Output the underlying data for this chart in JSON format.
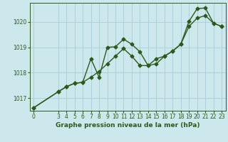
{
  "title": "Graphe pression niveau de la mer (hPa)",
  "background_color": "#cce8ed",
  "line_color": "#2d5a1b",
  "grid_color": "#a8cdd4",
  "ylim": [
    1016.5,
    1020.75
  ],
  "xlim": [
    -0.5,
    23.5
  ],
  "yticks": [
    1017,
    1018,
    1019,
    1020
  ],
  "xticks": [
    0,
    3,
    4,
    5,
    6,
    7,
    8,
    9,
    10,
    11,
    12,
    13,
    14,
    15,
    16,
    17,
    18,
    19,
    20,
    21,
    22,
    23
  ],
  "series1_x": [
    0,
    3,
    4,
    5,
    6,
    7,
    8,
    9,
    10,
    11,
    12,
    13,
    14,
    15,
    16,
    17,
    18,
    19,
    20,
    21,
    22,
    23
  ],
  "series1_y": [
    1016.62,
    1017.25,
    1017.45,
    1017.58,
    1017.62,
    1018.55,
    1017.82,
    1019.0,
    1019.02,
    1019.32,
    1019.12,
    1018.82,
    1018.28,
    1018.35,
    1018.65,
    1018.85,
    1019.12,
    1020.02,
    1020.52,
    1020.55,
    1019.95,
    1019.82
  ],
  "series2_x": [
    0,
    3,
    4,
    5,
    6,
    7,
    8,
    9,
    10,
    11,
    12,
    13,
    14,
    15,
    16,
    17,
    18,
    19,
    20,
    21,
    22,
    23
  ],
  "series2_y": [
    1016.62,
    1017.25,
    1017.45,
    1017.58,
    1017.62,
    1017.82,
    1018.05,
    1018.35,
    1018.65,
    1018.95,
    1018.65,
    1018.28,
    1018.28,
    1018.55,
    1018.65,
    1018.85,
    1019.12,
    1019.82,
    1020.15,
    1020.25,
    1019.95,
    1019.82
  ],
  "marker": "D",
  "markersize": 2.5,
  "linewidth": 1.0,
  "tick_fontsize": 5.5,
  "label_fontsize": 6.5
}
